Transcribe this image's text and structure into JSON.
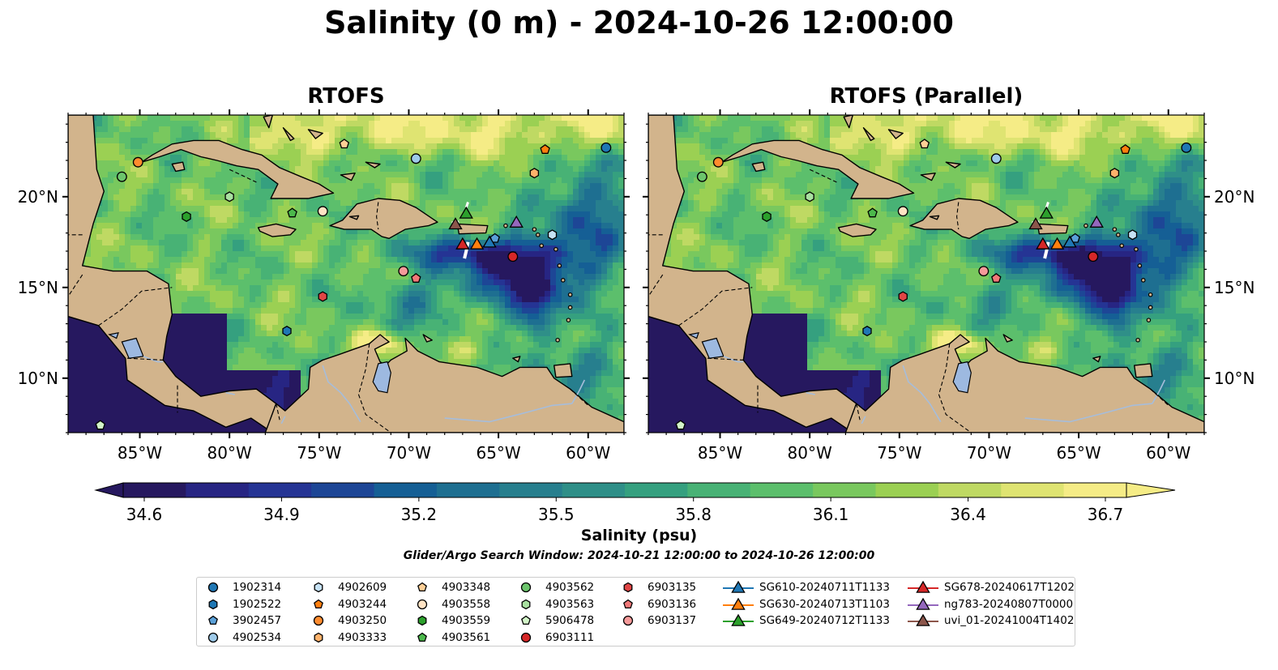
{
  "title": "Salinity (0 m) - 2024-10-26 12:00:00",
  "panels": [
    {
      "title": "RTOFS",
      "variant": "ctrl"
    },
    {
      "title": "RTOFS (Parallel)",
      "variant": "para"
    }
  ],
  "axes": {
    "x_ticks": [
      {
        "value": -85,
        "label": "85°W"
      },
      {
        "value": -80,
        "label": "80°W"
      },
      {
        "value": -75,
        "label": "75°W"
      },
      {
        "value": -70,
        "label": "70°W"
      },
      {
        "value": -65,
        "label": "65°W"
      },
      {
        "value": -60,
        "label": "60°W"
      }
    ],
    "y_ticks": [
      {
        "value": 20,
        "label": "20°N"
      },
      {
        "value": 15,
        "label": "15°N"
      },
      {
        "value": 10,
        "label": "10°N"
      }
    ],
    "lon_range": [
      -89,
      -58
    ],
    "lat_range": [
      7,
      24.5
    ]
  },
  "colorbar": {
    "label": "Salinity (psu)",
    "min": 34.6,
    "max": 36.7,
    "extend": "both",
    "tick_labels": [
      "34.6",
      "34.9",
      "35.2",
      "35.5",
      "35.8",
      "36.1",
      "36.4",
      "36.7"
    ],
    "colors": [
      "#26185f",
      "#272583",
      "#253494",
      "#1d4696",
      "#155f95",
      "#1e6f91",
      "#277f8e",
      "#2f8f88",
      "#35a07f",
      "#48b275",
      "#5cbf6c",
      "#79c85e",
      "#9bd053",
      "#bfd963",
      "#dfe472",
      "#f5ec86"
    ]
  },
  "colors": {
    "land": "#d2b48c",
    "lake": "#9db9e0",
    "river": "#a6bddb",
    "coast": "#000000"
  },
  "search_window": "Glider/Argo Search Window: 2024-10-21 12:00:00 to 2024-10-26 12:00:00",
  "legend": {
    "columns": [
      [
        {
          "label": "1902314",
          "marker": "circle",
          "color": "#1f77b4"
        },
        {
          "label": "1902522",
          "marker": "hexagon",
          "color": "#1f77b4"
        },
        {
          "label": "3902457",
          "marker": "pentagon",
          "color": "#5aa0d8"
        },
        {
          "label": "4902534",
          "marker": "circle",
          "color": "#9ecae9"
        }
      ],
      [
        {
          "label": "4902609",
          "marker": "hexagon",
          "color": "#c6e2f5"
        },
        {
          "label": "4903244",
          "marker": "pentagon",
          "color": "#ff7f0e"
        },
        {
          "label": "4903250",
          "marker": "circle",
          "color": "#ff8c2e"
        },
        {
          "label": "4903333",
          "marker": "hexagon",
          "color": "#ffb26b"
        }
      ],
      [
        {
          "label": "4903348",
          "marker": "pentagon",
          "color": "#ffcf96"
        },
        {
          "label": "4903558",
          "marker": "circle",
          "color": "#ffe3c4"
        },
        {
          "label": "4903559",
          "marker": "hexagon",
          "color": "#2ca02c"
        },
        {
          "label": "4903561",
          "marker": "pentagon",
          "color": "#4cb84c"
        }
      ],
      [
        {
          "label": "4903562",
          "marker": "circle",
          "color": "#6cc56c"
        },
        {
          "label": "4903563",
          "marker": "hexagon",
          "color": "#a8e0a0"
        },
        {
          "label": "5906478",
          "marker": "pentagon",
          "color": "#d2f5c8"
        },
        {
          "label": "6903111",
          "marker": "circle",
          "color": "#d62728"
        }
      ],
      [
        {
          "label": "6903135",
          "marker": "hexagon",
          "color": "#e04545"
        },
        {
          "label": "6903136",
          "marker": "pentagon",
          "color": "#f07878"
        },
        {
          "label": "6903137",
          "marker": "circle",
          "color": "#f59a9a"
        }
      ],
      [
        {
          "label": "SG610-20240711T1133",
          "marker": "triangle",
          "color": "#1f77b4"
        },
        {
          "label": "SG630-20240713T1103",
          "marker": "triangle",
          "color": "#ff7f0e"
        },
        {
          "label": "SG649-20240712T1133",
          "marker": "triangle",
          "color": "#2ca02c"
        }
      ],
      [
        {
          "label": "SG678-20240617T1202",
          "marker": "triangle",
          "color": "#d62728"
        },
        {
          "label": "ng783-20240807T0000",
          "marker": "triangle",
          "color": "#9467bd"
        },
        {
          "label": "uvi_01-20241004T1402",
          "marker": "triangle",
          "color": "#8c564b"
        }
      ]
    ]
  },
  "observations": [
    {
      "id": "1902314",
      "lon": -59.0,
      "lat": 22.7
    },
    {
      "id": "1902522",
      "lon": -76.8,
      "lat": 12.6
    },
    {
      "id": "3902457",
      "lon": -65.2,
      "lat": 17.7
    },
    {
      "id": "4902534",
      "lon": -69.6,
      "lat": 22.1
    },
    {
      "id": "4902609",
      "lon": -62.0,
      "lat": 17.9
    },
    {
      "id": "4903244",
      "lon": -62.4,
      "lat": 22.6
    },
    {
      "id": "4903250",
      "lon": -85.1,
      "lat": 21.9
    },
    {
      "id": "4903333",
      "lon": -63.0,
      "lat": 21.3
    },
    {
      "id": "4903348",
      "lon": -73.6,
      "lat": 22.9
    },
    {
      "id": "4903558",
      "lon": -74.8,
      "lat": 19.2
    },
    {
      "id": "4903559",
      "lon": -82.4,
      "lat": 18.9
    },
    {
      "id": "4903561",
      "lon": -76.5,
      "lat": 19.1
    },
    {
      "id": "4903562",
      "lon": -86.0,
      "lat": 21.1
    },
    {
      "id": "4903563",
      "lon": -80.0,
      "lat": 20.0
    },
    {
      "id": "5906478",
      "lon": -87.2,
      "lat": 7.4
    },
    {
      "id": "6903111",
      "lon": -64.2,
      "lat": 16.7
    },
    {
      "id": "6903135",
      "lon": -74.8,
      "lat": 14.5
    },
    {
      "id": "6903136",
      "lon": -69.6,
      "lat": 15.5
    },
    {
      "id": "6903137",
      "lon": -70.3,
      "lat": 15.9
    },
    {
      "id": "SG610-20240711T1133",
      "lon": -65.5,
      "lat": 17.5
    },
    {
      "id": "SG630-20240713T1103",
      "lon": -66.2,
      "lat": 17.4
    },
    {
      "id": "SG649-20240712T1133",
      "lon": -66.8,
      "lat": 19.1
    },
    {
      "id": "SG678-20240617T1202",
      "lon": -67.0,
      "lat": 17.4
    },
    {
      "id": "ng783-20240807T0000",
      "lon": -64.0,
      "lat": 18.6
    },
    {
      "id": "uvi_01-20241004T1402",
      "lon": -67.4,
      "lat": 18.5
    }
  ]
}
